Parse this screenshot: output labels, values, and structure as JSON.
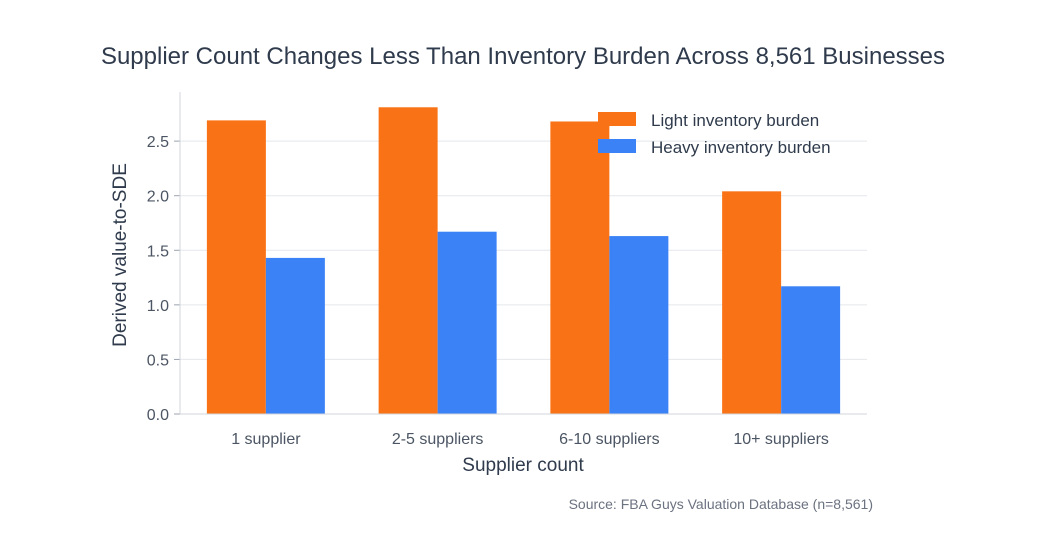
{
  "chart_data": {
    "type": "bar",
    "title": "Supplier Count Changes Less Than Inventory Burden Across 8,561 Businesses",
    "xlabel": "Supplier count",
    "ylabel": "Derived value-to-SDE",
    "categories": [
      "1 supplier",
      "2-5 suppliers",
      "6-10 suppliers",
      "10+ suppliers"
    ],
    "series": [
      {
        "name": "Light inventory burden",
        "color": "#f97316",
        "values": [
          2.69,
          2.81,
          2.68,
          2.04
        ]
      },
      {
        "name": "Heavy inventory burden",
        "color": "#3b82f6",
        "values": [
          1.43,
          1.67,
          1.63,
          1.17
        ]
      }
    ],
    "ylim": [
      0,
      2.95
    ],
    "yticks": [
      "0.0",
      "0.5",
      "1.0",
      "1.5",
      "2.0",
      "2.5"
    ],
    "ytick_values": [
      0,
      0.5,
      1.0,
      1.5,
      2.0,
      2.5
    ],
    "grid": true,
    "legend_position": "top-right",
    "source": "Source: FBA Guys Valuation Database (n=8,561)"
  }
}
